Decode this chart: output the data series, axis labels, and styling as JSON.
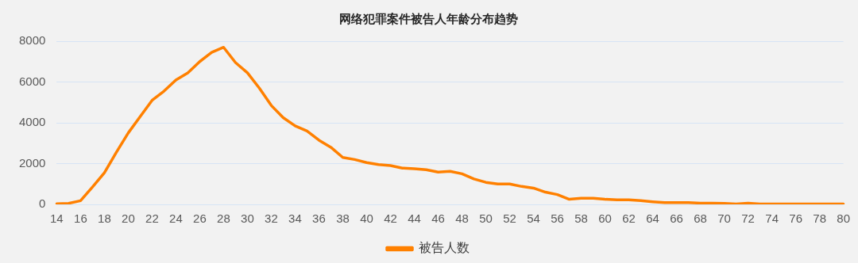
{
  "chart_data": {
    "type": "line",
    "title": "网络犯罪案件被告人年龄分布趋势",
    "categories": [
      "14",
      null,
      "16",
      null,
      "18",
      null,
      "20",
      null,
      "22",
      null,
      "24",
      null,
      "26",
      null,
      "28",
      null,
      "30",
      null,
      "32",
      null,
      "34",
      null,
      "36",
      null,
      "38",
      null,
      "40",
      null,
      "42",
      null,
      "44",
      null,
      "46",
      null,
      "48",
      null,
      "50",
      null,
      "52",
      null,
      "54",
      null,
      "56",
      null,
      "58",
      null,
      "60",
      null,
      "62",
      null,
      "64",
      null,
      "66",
      null,
      "68",
      null,
      "70",
      null,
      "72",
      null,
      "74",
      null,
      "76",
      null,
      "78",
      null,
      "80"
    ],
    "series": [
      {
        "name": "被告人数",
        "color": "#ff8000",
        "values": [
          30,
          50,
          180,
          850,
          1550,
          2550,
          3500,
          4300,
          5100,
          5550,
          6100,
          6450,
          7000,
          7450,
          7700,
          6950,
          6450,
          5700,
          4850,
          4250,
          3850,
          3600,
          3150,
          2800,
          2300,
          2200,
          2050,
          1950,
          1900,
          1780,
          1750,
          1700,
          1580,
          1620,
          1500,
          1250,
          1080,
          1000,
          1000,
          880,
          800,
          600,
          480,
          250,
          300,
          300,
          250,
          220,
          220,
          180,
          130,
          90,
          90,
          90,
          60,
          60,
          50,
          20,
          60,
          20,
          20,
          20,
          20,
          20,
          20,
          20,
          20
        ]
      }
    ],
    "ylim": [
      0,
      8000
    ],
    "yticks": [
      0,
      2000,
      4000,
      6000,
      8000
    ],
    "grid": "y",
    "legend": "bottom",
    "marker": "none",
    "line_style": "solid"
  }
}
